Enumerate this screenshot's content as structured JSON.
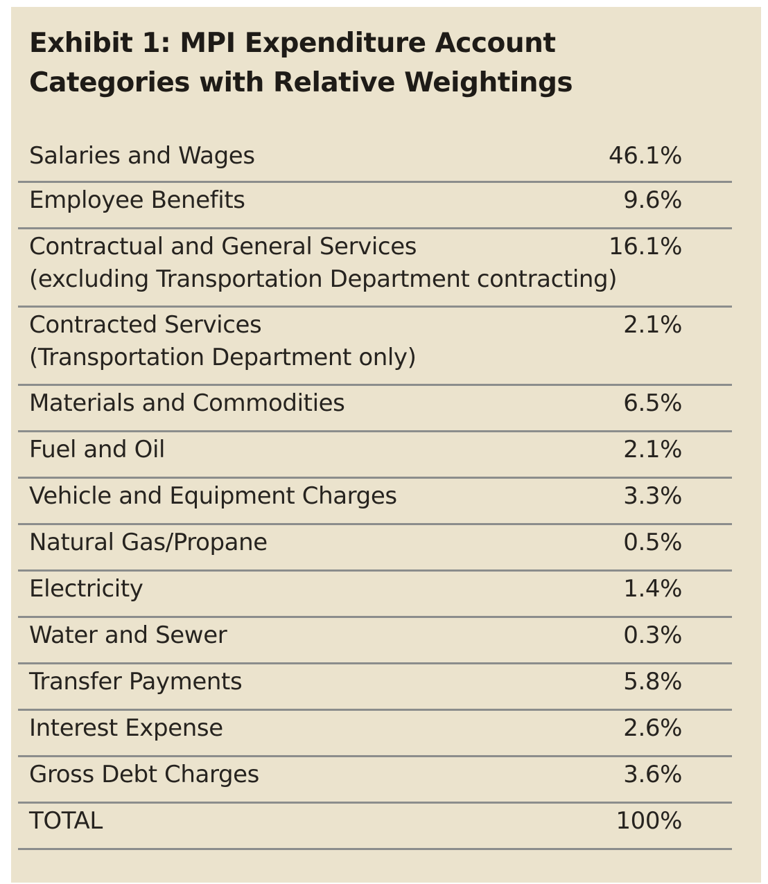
{
  "exhibit": {
    "title_line1": "Exhibit 1: MPI Expenditure Account",
    "title_line2": "Categories with Relative Weightings"
  },
  "rows": [
    {
      "label": "Salaries and Wages",
      "value": "46.1%"
    },
    {
      "label": "Employee Benefits",
      "value": "9.6%"
    },
    {
      "label": "Contractual and General Services",
      "sublabel": "(excluding Transportation Department contracting)",
      "value": "16.1%"
    },
    {
      "label": "Contracted Services",
      "sublabel": "(Transportation Department only)",
      "value": "2.1%"
    },
    {
      "label": "Materials and Commodities",
      "value": "6.5%"
    },
    {
      "label": "Fuel and Oil",
      "value": "2.1%"
    },
    {
      "label": "Vehicle and Equipment Charges",
      "value": "3.3%"
    },
    {
      "label": "Natural Gas/Propane",
      "value": "0.5%"
    },
    {
      "label": "Electricity",
      "value": "1.4%"
    },
    {
      "label": "Water and Sewer",
      "value": "0.3%"
    },
    {
      "label": "Transfer Payments",
      "value": "5.8%"
    },
    {
      "label": "Interest Expense",
      "value": "2.6%"
    },
    {
      "label": "Gross Debt Charges",
      "value": "3.6%"
    },
    {
      "label": "TOTAL",
      "value": "100%"
    }
  ]
}
